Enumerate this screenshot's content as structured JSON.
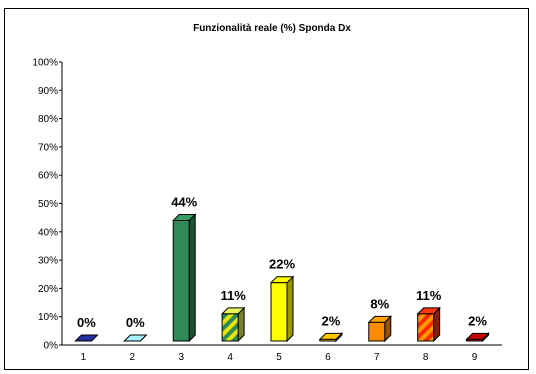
{
  "chart_data": {
    "type": "bar",
    "title": "Funzionalità reale (%) Sponda Dx",
    "categories": [
      "1",
      "2",
      "3",
      "4",
      "5",
      "6",
      "7",
      "8",
      "9"
    ],
    "values": [
      0,
      0,
      44,
      11,
      22,
      2,
      8,
      11,
      2
    ],
    "data_labels": [
      "0%",
      "0%",
      "44%",
      "11%",
      "22%",
      "2%",
      "8%",
      "11%",
      "2%"
    ],
    "y_tick_labels": [
      "0%",
      "10%",
      "20%",
      "30%",
      "40%",
      "50%",
      "60%",
      "70%",
      "80%",
      "90%",
      "100%"
    ],
    "ylim": [
      0,
      100
    ],
    "bar_colors": [
      "#1f2a8a",
      "#8fd3f0",
      "#2e8b57",
      "#c8d64a",
      "#ffff00",
      "#f0b000",
      "#ff8c00",
      "#e8300a",
      "#b00000"
    ],
    "bar_patterns": [
      "solid",
      "solid",
      "solid",
      "diagonal-stripes",
      "solid",
      "solid",
      "solid",
      "diagonal-stripes",
      "solid"
    ],
    "grid": false,
    "legend": "none"
  }
}
